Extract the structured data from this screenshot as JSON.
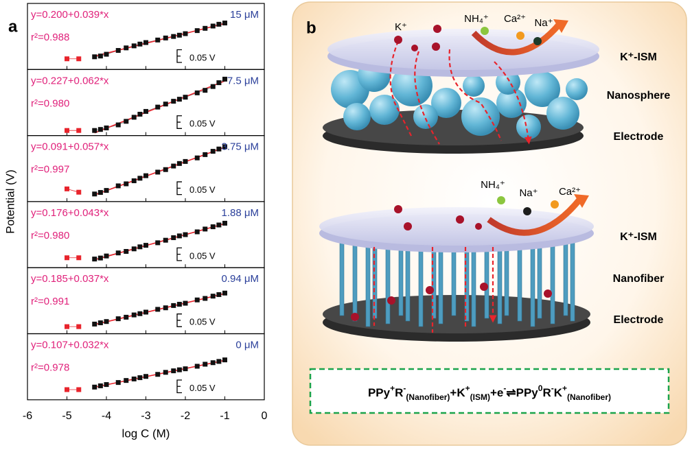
{
  "panel_a": {
    "letter": "a",
    "y_label": "Potential (V)"
  },
  "chart_data": [
    {
      "type": "scatter",
      "fit": {
        "label": "y=0.200+0.039*x",
        "intercept": 0.2,
        "slope": 0.039
      },
      "r2_label": "r²=0.988",
      "annotation": "15 μM",
      "scale_bar": {
        "value": 0.05,
        "label": "0.05 V"
      },
      "xlim": [
        -6,
        0
      ],
      "xticks": [
        -6,
        -5,
        -4,
        -3,
        -2,
        -1,
        0
      ],
      "ylim": [
        -0.02,
        0.24
      ],
      "series": [
        {
          "color": "#e8242c",
          "x": [
            -5,
            -4.7
          ],
          "values": [
            0.022,
            0.022
          ]
        },
        {
          "color": "#111111",
          "x": [
            -4.3,
            -4.15,
            -4,
            -3.7,
            -3.5,
            -3.3,
            -3.15,
            -3,
            -2.7,
            -2.5,
            -2.3,
            -2.15,
            -2,
            -1.7,
            -1.5,
            -1.3,
            -1.15,
            -1
          ],
          "values": [
            0.03,
            0.033,
            0.04,
            0.055,
            0.065,
            0.073,
            0.08,
            0.086,
            0.096,
            0.104,
            0.11,
            0.115,
            0.121,
            0.133,
            0.142,
            0.151,
            0.158,
            0.163
          ]
        }
      ]
    },
    {
      "type": "scatter",
      "fit": {
        "label": "y=0.227+0.062*x",
        "intercept": 0.227,
        "slope": 0.062
      },
      "r2_label": "r²=0.980",
      "annotation": "7.5 μM",
      "scale_bar": {
        "value": 0.05,
        "label": "0.05 V"
      },
      "xlim": [
        -6,
        0
      ],
      "xticks": [
        -6,
        -5,
        -4,
        -3,
        -2,
        -1,
        0
      ],
      "ylim": [
        -0.05,
        0.21
      ],
      "series": [
        {
          "color": "#e8242c",
          "x": [
            -5,
            -4.7
          ],
          "values": [
            -0.03,
            -0.03
          ]
        },
        {
          "color": "#111111",
          "x": [
            -4.3,
            -4.15,
            -4,
            -3.7,
            -3.5,
            -3.3,
            -3.15,
            -3,
            -2.7,
            -2.5,
            -2.3,
            -2.15,
            -2,
            -1.7,
            -1.5,
            -1.3,
            -1.15,
            -1
          ],
          "values": [
            -0.03,
            -0.026,
            -0.02,
            -0.008,
            0.006,
            0.022,
            0.034,
            0.045,
            0.062,
            0.074,
            0.085,
            0.093,
            0.101,
            0.118,
            0.128,
            0.143,
            0.158,
            0.172
          ]
        }
      ]
    },
    {
      "type": "scatter",
      "fit": {
        "label": "y=0.091+0.057*x",
        "intercept": 0.091,
        "slope": 0.057
      },
      "r2_label": "r²=0.997",
      "annotation": "3.75 μM",
      "scale_bar": {
        "value": 0.05,
        "label": "0.05 V"
      },
      "xlim": [
        -6,
        0
      ],
      "xticks": [
        -6,
        -5,
        -4,
        -3,
        -2,
        -1,
        0
      ],
      "ylim": [
        -0.18,
        0.08
      ],
      "series": [
        {
          "color": "#e8242c",
          "x": [
            -5,
            -4.7
          ],
          "values": [
            -0.13,
            -0.143
          ]
        },
        {
          "color": "#111111",
          "x": [
            -4.3,
            -4.15,
            -4,
            -3.7,
            -3.5,
            -3.3,
            -3.15,
            -3,
            -2.7,
            -2.5,
            -2.3,
            -2.15,
            -2,
            -1.7,
            -1.5,
            -1.3,
            -1.15,
            -1
          ],
          "values": [
            -0.15,
            -0.144,
            -0.136,
            -0.118,
            -0.11,
            -0.098,
            -0.088,
            -0.078,
            -0.064,
            -0.054,
            -0.04,
            -0.03,
            -0.022,
            -0.008,
            0.005,
            0.018,
            0.027,
            0.036
          ]
        }
      ]
    },
    {
      "type": "scatter",
      "fit": {
        "label": "y=0.176+0.043*x",
        "intercept": 0.176,
        "slope": 0.043
      },
      "r2_label": "r²=0.980",
      "annotation": "1.88 μM",
      "scale_bar": {
        "value": 0.05,
        "label": "0.05 V"
      },
      "xlim": [
        -6,
        0
      ],
      "xticks": [
        -6,
        -5,
        -4,
        -3,
        -2,
        -1,
        0
      ],
      "ylim": [
        -0.04,
        0.22
      ],
      "series": [
        {
          "color": "#e8242c",
          "x": [
            -5,
            -4.7
          ],
          "values": [
            -0.001,
            -0.001
          ]
        },
        {
          "color": "#111111",
          "x": [
            -4.3,
            -4.15,
            -4,
            -3.7,
            -3.5,
            -3.3,
            -3.15,
            -3,
            -2.7,
            -2.5,
            -2.3,
            -2.15,
            -2,
            -1.7,
            -1.5,
            -1.3,
            -1.15,
            -1
          ],
          "values": [
            -0.006,
            -0.002,
            0.006,
            0.018,
            0.024,
            0.034,
            0.042,
            0.048,
            0.058,
            0.068,
            0.078,
            0.085,
            0.09,
            0.101,
            0.112,
            0.121,
            0.128,
            0.135
          ]
        }
      ]
    },
    {
      "type": "scatter",
      "fit": {
        "label": "y=0.185+0.037*x",
        "intercept": 0.185,
        "slope": 0.037
      },
      "r2_label": "r²=0.991",
      "annotation": "0.94 μM",
      "scale_bar": {
        "value": 0.05,
        "label": "0.05 V"
      },
      "xlim": [
        -6,
        0
      ],
      "xticks": [
        -6,
        -5,
        -4,
        -3,
        -2,
        -1,
        0
      ],
      "ylim": [
        -0.01,
        0.25
      ],
      "series": [
        {
          "color": "#e8242c",
          "x": [
            -5,
            -4.7
          ],
          "values": [
            0.018,
            0.018
          ]
        },
        {
          "color": "#111111",
          "x": [
            -4.3,
            -4.15,
            -4,
            -3.7,
            -3.5,
            -3.3,
            -3.15,
            -3,
            -2.7,
            -2.5,
            -2.3,
            -2.15,
            -2,
            -1.7,
            -1.5,
            -1.3,
            -1.15,
            -1
          ],
          "values": [
            0.028,
            0.033,
            0.038,
            0.049,
            0.055,
            0.064,
            0.069,
            0.075,
            0.086,
            0.092,
            0.101,
            0.106,
            0.11,
            0.123,
            0.129,
            0.138,
            0.144,
            0.15
          ]
        }
      ]
    },
    {
      "type": "scatter",
      "fit": {
        "label": "y=0.107+0.032*x",
        "intercept": 0.107,
        "slope": 0.032
      },
      "r2_label": "r²=0.978",
      "annotation": "0 μM",
      "scale_bar": {
        "value": 0.05,
        "label": "0.05 V"
      },
      "xlim": [
        -6,
        0
      ],
      "xticks": [
        -6,
        -5,
        -4,
        -3,
        -2,
        -1,
        0
      ],
      "ylim": [
        -0.08,
        0.18
      ],
      "x_label": "log C (M)",
      "series": [
        {
          "color": "#e8242c",
          "x": [
            -5,
            -4.7
          ],
          "values": [
            -0.04,
            -0.04
          ]
        },
        {
          "color": "#111111",
          "x": [
            -4.3,
            -4.15,
            -4,
            -3.7,
            -3.5,
            -3.3,
            -3.15,
            -3,
            -2.7,
            -2.5,
            -2.3,
            -2.15,
            -2,
            -1.7,
            -1.5,
            -1.3,
            -1.15,
            -1
          ],
          "values": [
            -0.03,
            -0.025,
            -0.02,
            -0.012,
            -0.004,
            0.002,
            0.007,
            0.012,
            0.02,
            0.028,
            0.034,
            0.038,
            0.042,
            0.052,
            0.06,
            0.066,
            0.071,
            0.077
          ]
        }
      ]
    }
  ],
  "panel_b": {
    "letter": "b",
    "top_ions": [
      "K⁺",
      "NH₄⁺",
      "Ca²⁺",
      "Na⁺"
    ],
    "top_layers": [
      "K⁺-ISM",
      "Nanosphere",
      "Electrode"
    ],
    "bottom_ions": [
      "NH₄⁺",
      "Na⁺",
      "Ca²⁺"
    ],
    "bottom_layers": [
      "K⁺-ISM",
      "Nanofiber",
      "Electrode"
    ],
    "equation": [
      {
        "t": "PPy"
      },
      {
        "t": "+",
        "pos": "sup"
      },
      {
        "t": "R"
      },
      {
        "t": "-",
        "pos": "sup"
      },
      {
        "t": "(Nanofiber)",
        "pos": "sub"
      },
      {
        "t": "+K"
      },
      {
        "t": "+",
        "pos": "sup"
      },
      {
        "t": "(ISM)",
        "pos": "sub"
      },
      {
        "t": "+e"
      },
      {
        "t": "-",
        "pos": "sup"
      },
      {
        "t": "⇌PPy"
      },
      {
        "t": "0",
        "pos": "sup"
      },
      {
        "t": "R"
      },
      {
        "t": "-",
        "pos": "sup"
      },
      {
        "t": "K"
      },
      {
        "t": "+",
        "pos": "sup"
      },
      {
        "t": "(Nanofiber)",
        "pos": "sub"
      }
    ]
  }
}
